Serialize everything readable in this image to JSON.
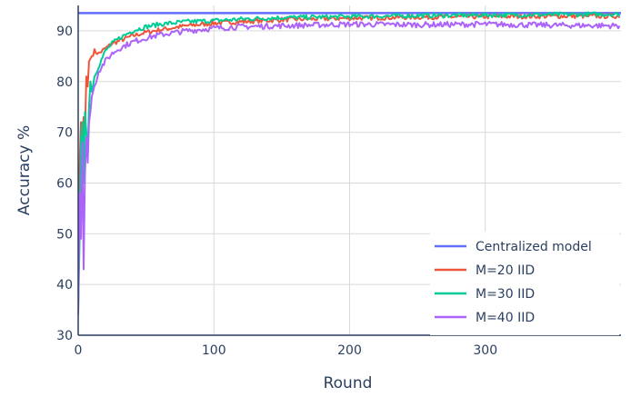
{
  "chart_data": {
    "type": "line",
    "title": "",
    "xlabel": "Round",
    "ylabel": "Accuracy %",
    "xlim": [
      0,
      400
    ],
    "ylim": [
      30,
      95
    ],
    "xticks": [
      0,
      100,
      200,
      300
    ],
    "yticks": [
      30,
      40,
      50,
      60,
      70,
      80,
      90
    ],
    "grid": true,
    "legend_position": "bottom-right",
    "series": [
      {
        "name": "Centralized model",
        "color": "#636efa",
        "style": "constant",
        "x": [
          0,
          400
        ],
        "y": [
          93.5,
          93.5
        ]
      },
      {
        "name": "M=20 IID",
        "color": "#ef553b",
        "x": [
          0,
          1,
          2,
          3,
          4,
          5,
          6,
          7,
          8,
          10,
          12,
          15,
          20,
          25,
          30,
          40,
          50,
          60,
          80,
          100,
          120,
          150,
          200,
          250,
          300,
          350,
          399
        ],
        "y": [
          34,
          63,
          72,
          65,
          73,
          70,
          81,
          79,
          84,
          85,
          86,
          85.5,
          86.5,
          87.5,
          88,
          89,
          89.7,
          90.2,
          91,
          91.5,
          91.8,
          92.2,
          92.5,
          92.7,
          92.8,
          92.9,
          92.9
        ]
      },
      {
        "name": "M=30 IID",
        "color": "#00cc96",
        "x": [
          0,
          1,
          2,
          3,
          4,
          5,
          6,
          7,
          8,
          9,
          10,
          12,
          15,
          20,
          25,
          30,
          40,
          50,
          60,
          80,
          100,
          120,
          150,
          200,
          250,
          300,
          350,
          399
        ],
        "y": [
          35,
          48,
          68,
          72,
          60,
          74,
          70,
          66,
          75,
          80,
          78,
          81,
          83,
          86,
          87.5,
          88.5,
          90,
          90.8,
          91.3,
          91.8,
          92,
          92.3,
          92.6,
          92.8,
          93,
          93.1,
          93.2,
          93.3
        ]
      },
      {
        "name": "M=40 IID",
        "color": "#ab63fa",
        "x": [
          0,
          1,
          2,
          3,
          4,
          5,
          6,
          7,
          8,
          9,
          10,
          12,
          15,
          20,
          25,
          30,
          40,
          50,
          60,
          80,
          100,
          120,
          150,
          200,
          250,
          300,
          350,
          399
        ],
        "y": [
          34,
          58,
          49,
          68,
          43,
          62,
          69,
          64,
          72,
          74,
          77,
          79,
          82,
          84,
          85.5,
          86.5,
          87.8,
          88.6,
          89.2,
          90,
          90.5,
          90.8,
          91,
          91.3,
          91.2,
          91.3,
          91.1,
          91
        ]
      }
    ]
  }
}
